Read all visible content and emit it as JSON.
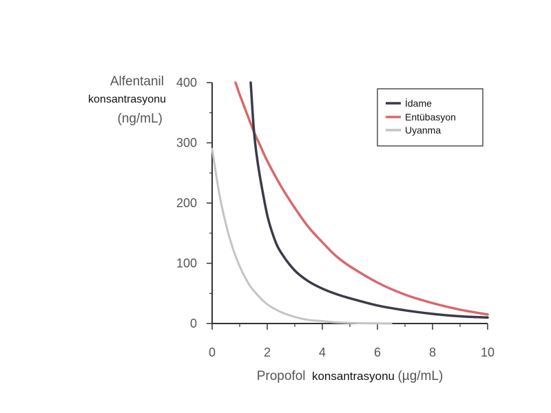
{
  "chart_data": {
    "type": "line",
    "title": "",
    "ylabel_lines": [
      "Alfentanil",
      "konsantrasyonu",
      "(ng/mL)"
    ],
    "xlabel_parts": [
      "Propofol",
      "konsantrasyonu",
      "(µg/mL)"
    ],
    "xlim": [
      0,
      10
    ],
    "ylim": [
      0,
      400
    ],
    "x_ticks": [
      "0",
      "2",
      "4",
      "6",
      "8",
      "10"
    ],
    "y_ticks": [
      "0",
      "100",
      "200",
      "300",
      "400"
    ],
    "grid": false,
    "legend_position": "top-right",
    "series": [
      {
        "name": "İdame",
        "color": "#3a3a48",
        "x": [
          1.4,
          1.5,
          1.6,
          1.75,
          2.0,
          2.25,
          2.5,
          3.0,
          3.5,
          4.0,
          4.5,
          5.0,
          6.0,
          7.0,
          8.0,
          9.0,
          10.0
        ],
        "y": [
          400,
          330,
          285,
          240,
          180,
          142,
          118,
          88,
          70,
          58,
          49,
          42,
          30,
          22,
          16,
          12,
          10
        ]
      },
      {
        "name": "Entübasyon",
        "color": "#d9686b",
        "x": [
          0.85,
          1.0,
          1.25,
          1.5,
          1.75,
          2.0,
          2.5,
          3.0,
          3.5,
          4.0,
          4.5,
          5.0,
          6.0,
          7.0,
          8.0,
          9.0,
          10.0
        ],
        "y": [
          400,
          380,
          350,
          320,
          295,
          270,
          228,
          192,
          160,
          135,
          112,
          95,
          68,
          48,
          34,
          23,
          15
        ]
      },
      {
        "name": "Uyanma",
        "color": "#c4c4c4",
        "x": [
          0.0,
          0.25,
          0.5,
          0.75,
          1.0,
          1.25,
          1.5,
          2.0,
          2.5,
          3.0,
          3.5,
          4.0,
          4.5,
          5.0,
          5.5,
          6.0,
          6.5
        ],
        "y": [
          290,
          218,
          165,
          125,
          95,
          72,
          55,
          32,
          19,
          11,
          6,
          4,
          2,
          1,
          0.5,
          0.3,
          0
        ]
      }
    ]
  }
}
